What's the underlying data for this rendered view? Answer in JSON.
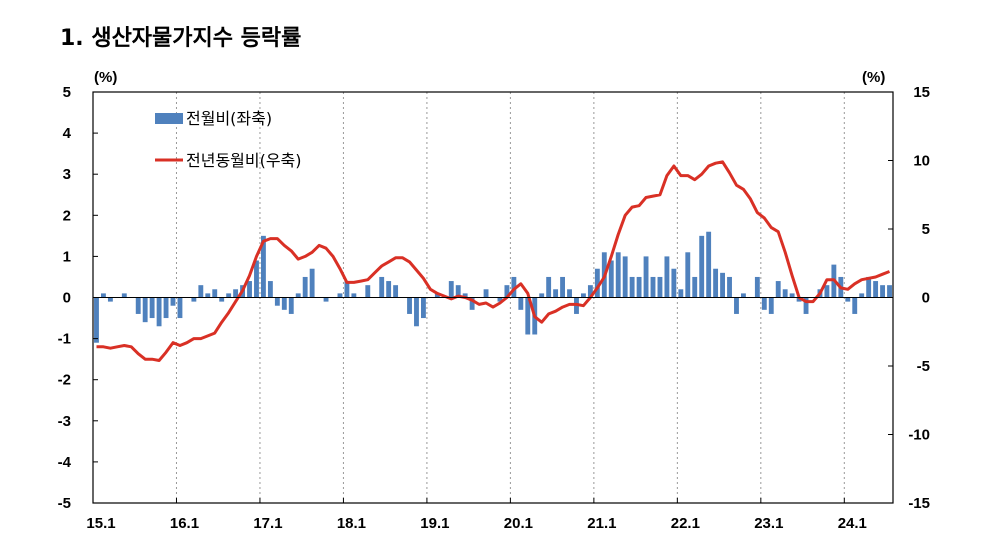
{
  "title": "1. 생산자물가지수 등락률",
  "chart_data": {
    "type": "bar+line",
    "x_tick_labels": [
      "15.1",
      "16.1",
      "17.1",
      "18.1",
      "19.1",
      "20.1",
      "21.1",
      "22.1",
      "23.1",
      "24.1"
    ],
    "y_left": {
      "unit": "(%)",
      "ylim": [
        -5,
        5
      ],
      "ticks": [
        5,
        4,
        3,
        2,
        1,
        0,
        -1,
        -2,
        -3,
        -4,
        -5
      ]
    },
    "y_right": {
      "unit": "(%)",
      "ylim": [
        -15,
        15
      ],
      "ticks": [
        15,
        10,
        5,
        0,
        -5,
        -10,
        -15
      ]
    },
    "grid": "vertical dotted at year starts",
    "legend": {
      "placement": "top-left"
    },
    "colors": {
      "bar": "#4f81bd",
      "line": "#d93025"
    },
    "series": [
      {
        "name": "전월비(좌축)",
        "type": "bar",
        "axis": "left",
        "values": [
          -1.1,
          0.1,
          -0.1,
          0.0,
          0.1,
          0.0,
          -0.4,
          -0.6,
          -0.5,
          -0.7,
          -0.5,
          -0.2,
          -0.5,
          0.0,
          -0.1,
          0.3,
          0.1,
          0.2,
          -0.1,
          0.1,
          0.2,
          0.3,
          0.4,
          0.9,
          1.5,
          0.4,
          -0.2,
          -0.3,
          -0.4,
          0.1,
          0.5,
          0.7,
          0.0,
          -0.1,
          0.0,
          0.1,
          0.4,
          0.1,
          0.0,
          0.3,
          0.0,
          0.5,
          0.4,
          0.3,
          0.0,
          -0.4,
          -0.7,
          -0.5,
          0.0,
          0.1,
          0.0,
          0.4,
          0.3,
          0.1,
          -0.3,
          0.0,
          0.2,
          0.0,
          -0.1,
          0.3,
          0.5,
          -0.3,
          -0.9,
          -0.9,
          0.1,
          0.5,
          0.2,
          0.5,
          0.2,
          -0.4,
          0.1,
          0.3,
          0.7,
          1.1,
          0.9,
          1.1,
          1.0,
          0.5,
          0.5,
          1.0,
          0.5,
          0.5,
          1.0,
          0.7,
          0.2,
          1.1,
          0.5,
          1.5,
          1.6,
          0.7,
          0.6,
          0.5,
          -0.4,
          0.1,
          0.0,
          0.5,
          -0.3,
          -0.4,
          0.4,
          0.2,
          0.1,
          -0.1,
          -0.4,
          0.0,
          0.2,
          0.3,
          0.8,
          0.5,
          -0.1,
          -0.4,
          0.1,
          0.5,
          0.4,
          0.3,
          0.3
        ]
      },
      {
        "name": "전년동월비(우축)",
        "type": "line",
        "axis": "right",
        "values": [
          -3.6,
          -3.6,
          -3.7,
          -3.6,
          -3.5,
          -3.6,
          -4.1,
          -4.5,
          -4.5,
          -4.6,
          -4.0,
          -3.3,
          -3.5,
          -3.3,
          -3.0,
          -3.0,
          -2.8,
          -2.6,
          -1.8,
          -1.1,
          -0.3,
          0.5,
          1.6,
          3.0,
          4.1,
          4.3,
          4.3,
          3.8,
          3.4,
          2.8,
          3.0,
          3.3,
          3.8,
          3.6,
          3.0,
          2.1,
          1.1,
          1.1,
          1.2,
          1.3,
          1.8,
          2.3,
          2.6,
          2.9,
          2.9,
          2.6,
          2.0,
          1.4,
          0.6,
          0.3,
          0.1,
          -0.1,
          0.1,
          0.0,
          -0.2,
          -0.5,
          -0.4,
          -0.7,
          -0.4,
          0.0,
          0.6,
          1.0,
          0.3,
          -1.4,
          -1.8,
          -1.2,
          -1.0,
          -0.7,
          -0.5,
          -0.5,
          -0.6,
          0.0,
          0.7,
          1.5,
          3.0,
          4.6,
          6.0,
          6.6,
          6.7,
          7.3,
          7.4,
          7.5,
          8.9,
          9.6,
          8.9,
          8.9,
          8.6,
          9.0,
          9.6,
          9.8,
          9.9,
          9.1,
          8.2,
          7.9,
          7.2,
          6.2,
          5.8,
          5.1,
          4.8,
          3.3,
          1.6,
          0.0,
          -0.3,
          -0.3,
          0.3,
          1.3,
          1.3,
          0.7,
          0.6,
          1.0,
          1.3,
          1.4,
          1.5,
          1.7,
          1.9
        ]
      }
    ]
  }
}
